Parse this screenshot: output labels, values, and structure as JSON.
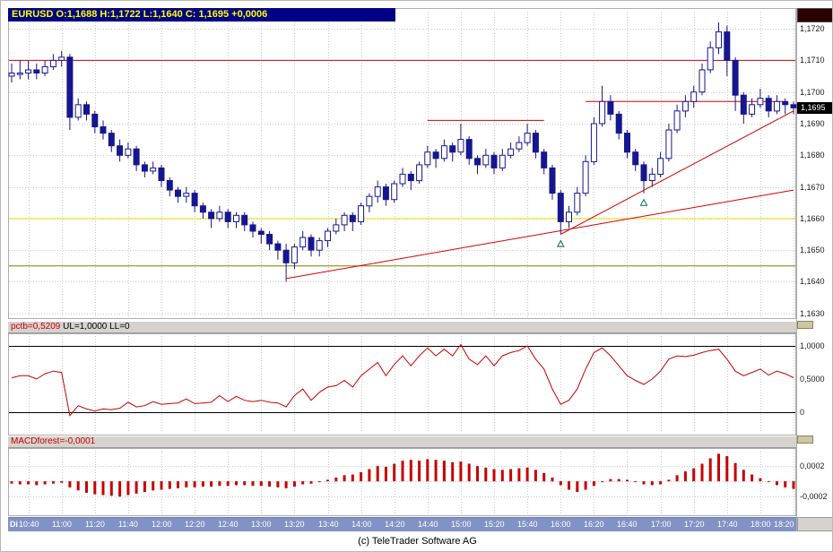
{
  "window": {
    "title": "EURUSD O:1,1688 H:1,1722 L:1,1640 C: 1,1695 +0,0006",
    "footer_credit": "(c) TeleTrader Software AG"
  },
  "colors": {
    "titlebar_bg": "#000084",
    "titlebar_text": "#ffff00",
    "candle": "#16168e",
    "series": "#c80000",
    "trendline": "#d40000",
    "level_red": "#d40000",
    "level_yellow": "#e8e800",
    "level_olive": "#808000",
    "grid": "#c9c9c9",
    "panel_header_bg": "#d6d3ce",
    "badge_bg": "#000000",
    "badge_text": "#ffffff",
    "timebar_bg": "#8292c4",
    "timebar_text": "#ffffff",
    "marker": "#0a6a55",
    "handle": "#cdc7a2",
    "corner_box": "#2b0000"
  },
  "main_panel": {
    "price_axis_labels": [
      {
        "text": "1,1720",
        "value": 1.172
      },
      {
        "text": "1,1710",
        "value": 1.171
      },
      {
        "text": "1,1700",
        "value": 1.17
      },
      {
        "text": "1,1690",
        "value": 1.169
      },
      {
        "text": "1,1680",
        "value": 1.168
      },
      {
        "text": "1,1670",
        "value": 1.167
      },
      {
        "text": "1,1660",
        "value": 1.166
      },
      {
        "text": "1,1650",
        "value": 1.165
      },
      {
        "text": "1,1640",
        "value": 1.164
      },
      {
        "text": "1,1630",
        "value": 1.163
      }
    ],
    "price_badge": {
      "text": "1,1695",
      "value": 1.1695
    }
  },
  "pctb_panel": {
    "title_value": "pctb=0,5209",
    "title_levels": " UL=1,0000 LL=0",
    "axis_labels": [
      {
        "text": "1,0000",
        "value": 1.0
      },
      {
        "text": "0,5000",
        "value": 0.5
      },
      {
        "text": "0",
        "value": 0.0
      }
    ]
  },
  "macd_panel": {
    "title": "MACDforest=-0,0001",
    "axis_labels": [
      {
        "text": "0,0002",
        "value": 0.0002
      },
      {
        "text": "-0,0002",
        "value": -0.0002
      }
    ]
  },
  "time_axis": {
    "day_label": "Di",
    "labels": [
      "10:40",
      "11:00",
      "11:20",
      "11:40",
      "12:00",
      "12:20",
      "12:40",
      "13:00",
      "13:20",
      "13:40",
      "14:00",
      "14:20",
      "14:40",
      "15:00",
      "15:20",
      "15:40",
      "16:00",
      "16:20",
      "16:40",
      "17:00",
      "17:20",
      "17:40",
      "18:00",
      "18:20"
    ]
  },
  "chart_data": [
    {
      "type": "candlestick",
      "symbol": "EURUSD",
      "interval": "5min",
      "start": "10:30",
      "end": "18:20",
      "session_ohlc": {
        "open": 1.1688,
        "high": 1.1722,
        "low": 1.164,
        "close": 1.1695,
        "change": 0.0006
      },
      "visible_axis": [
        1.163,
        1.172
      ],
      "ylim": [
        1.16288,
        1.17254
      ],
      "gridline_step": 0.001,
      "candles": [
        [
          1.1705,
          1.1709,
          1.1703,
          1.1706
        ],
        [
          1.1706,
          1.171,
          1.1704,
          1.1706
        ],
        [
          1.1706,
          1.171,
          1.1704,
          1.1707
        ],
        [
          1.1707,
          1.1709,
          1.1704,
          1.1706
        ],
        [
          1.1706,
          1.171,
          1.1705,
          1.1708
        ],
        [
          1.1708,
          1.1712,
          1.1707,
          1.171
        ],
        [
          1.171,
          1.1713,
          1.1708,
          1.1711
        ],
        [
          1.1711,
          1.1712,
          1.1688,
          1.1692
        ],
        [
          1.1692,
          1.1698,
          1.1691,
          1.1696
        ],
        [
          1.1696,
          1.1697,
          1.1691,
          1.1693
        ],
        [
          1.1693,
          1.1694,
          1.1687,
          1.1689
        ],
        [
          1.1689,
          1.1691,
          1.1685,
          1.1687
        ],
        [
          1.1687,
          1.1688,
          1.1681,
          1.1683
        ],
        [
          1.1683,
          1.1685,
          1.1678,
          1.168
        ],
        [
          1.168,
          1.1684,
          1.1679,
          1.1682
        ],
        [
          1.1682,
          1.1683,
          1.1675,
          1.1677
        ],
        [
          1.1677,
          1.1678,
          1.1673,
          1.1675
        ],
        [
          1.1675,
          1.1678,
          1.1674,
          1.1676
        ],
        [
          1.1676,
          1.1677,
          1.167,
          1.1672
        ],
        [
          1.1672,
          1.1673,
          1.1667,
          1.1669
        ],
        [
          1.1669,
          1.167,
          1.1665,
          1.1667
        ],
        [
          1.1667,
          1.167,
          1.1665,
          1.1668
        ],
        [
          1.1668,
          1.1669,
          1.1662,
          1.1664
        ],
        [
          1.1664,
          1.1665,
          1.166,
          1.1662
        ],
        [
          1.1662,
          1.1663,
          1.1657,
          1.166
        ],
        [
          1.166,
          1.1664,
          1.1659,
          1.1662
        ],
        [
          1.1662,
          1.1663,
          1.1657,
          1.1659
        ],
        [
          1.1659,
          1.1662,
          1.1657,
          1.1661
        ],
        [
          1.1661,
          1.1662,
          1.1656,
          1.1658
        ],
        [
          1.1658,
          1.1659,
          1.1654,
          1.1656
        ],
        [
          1.1656,
          1.1657,
          1.1652,
          1.1655
        ],
        [
          1.1655,
          1.1656,
          1.165,
          1.1652
        ],
        [
          1.1652,
          1.1653,
          1.1647,
          1.165
        ],
        [
          1.165,
          1.1652,
          1.164,
          1.1646
        ],
        [
          1.1646,
          1.1652,
          1.1644,
          1.1651
        ],
        [
          1.1651,
          1.1656,
          1.165,
          1.1654
        ],
        [
          1.1654,
          1.1655,
          1.1648,
          1.165
        ],
        [
          1.165,
          1.1654,
          1.1648,
          1.1653
        ],
        [
          1.1653,
          1.1657,
          1.1651,
          1.1656
        ],
        [
          1.1656,
          1.166,
          1.1655,
          1.1658
        ],
        [
          1.1658,
          1.1662,
          1.1656,
          1.1661
        ],
        [
          1.1661,
          1.1662,
          1.1656,
          1.1659
        ],
        [
          1.1659,
          1.1665,
          1.1658,
          1.1664
        ],
        [
          1.1664,
          1.1668,
          1.1662,
          1.1667
        ],
        [
          1.1667,
          1.1672,
          1.1665,
          1.167
        ],
        [
          1.167,
          1.1671,
          1.1664,
          1.1666
        ],
        [
          1.1666,
          1.1672,
          1.1665,
          1.1671
        ],
        [
          1.1671,
          1.1676,
          1.167,
          1.1674
        ],
        [
          1.1674,
          1.1675,
          1.1669,
          1.1672
        ],
        [
          1.1672,
          1.1678,
          1.1671,
          1.1677
        ],
        [
          1.1677,
          1.1683,
          1.1676,
          1.1681
        ],
        [
          1.1681,
          1.1682,
          1.1676,
          1.1679
        ],
        [
          1.1679,
          1.1685,
          1.1678,
          1.1683
        ],
        [
          1.1683,
          1.1684,
          1.1678,
          1.1681
        ],
        [
          1.1681,
          1.169,
          1.168,
          1.1685
        ],
        [
          1.1685,
          1.1686,
          1.1677,
          1.1679
        ],
        [
          1.1679,
          1.168,
          1.1674,
          1.1677
        ],
        [
          1.1677,
          1.1682,
          1.1676,
          1.168
        ],
        [
          1.168,
          1.1681,
          1.1674,
          1.1676
        ],
        [
          1.1676,
          1.1682,
          1.1675,
          1.168
        ],
        [
          1.168,
          1.1684,
          1.1679,
          1.1682
        ],
        [
          1.1682,
          1.1686,
          1.1681,
          1.1684
        ],
        [
          1.1684,
          1.169,
          1.1683,
          1.1687
        ],
        [
          1.1687,
          1.1688,
          1.1679,
          1.1681
        ],
        [
          1.1681,
          1.1682,
          1.1674,
          1.1676
        ],
        [
          1.1676,
          1.1677,
          1.1666,
          1.1668
        ],
        [
          1.1668,
          1.1669,
          1.1655,
          1.1659
        ],
        [
          1.1659,
          1.1664,
          1.1657,
          1.1662
        ],
        [
          1.1662,
          1.167,
          1.1661,
          1.1668
        ],
        [
          1.1668,
          1.168,
          1.1667,
          1.1678
        ],
        [
          1.1678,
          1.1692,
          1.1677,
          1.169
        ],
        [
          1.169,
          1.1702,
          1.1689,
          1.1697
        ],
        [
          1.1697,
          1.1699,
          1.1691,
          1.1693
        ],
        [
          1.1693,
          1.1694,
          1.1685,
          1.1687
        ],
        [
          1.1687,
          1.1688,
          1.1679,
          1.1681
        ],
        [
          1.1681,
          1.1682,
          1.1675,
          1.1677
        ],
        [
          1.1677,
          1.1678,
          1.1668,
          1.1672
        ],
        [
          1.1672,
          1.1676,
          1.167,
          1.1674
        ],
        [
          1.1674,
          1.1681,
          1.1673,
          1.1679
        ],
        [
          1.1679,
          1.169,
          1.1678,
          1.1688
        ],
        [
          1.1688,
          1.1696,
          1.1687,
          1.1694
        ],
        [
          1.1694,
          1.1699,
          1.1692,
          1.1697
        ],
        [
          1.1697,
          1.1702,
          1.1695,
          1.17
        ],
        [
          1.17,
          1.1709,
          1.1699,
          1.1707
        ],
        [
          1.1707,
          1.1716,
          1.1706,
          1.1714
        ],
        [
          1.1714,
          1.1722,
          1.1712,
          1.1719
        ],
        [
          1.1719,
          1.1721,
          1.1705,
          1.171
        ],
        [
          1.171,
          1.1711,
          1.1694,
          1.1699
        ],
        [
          1.1699,
          1.17,
          1.169,
          1.1693
        ],
        [
          1.1693,
          1.1698,
          1.1692,
          1.1696
        ],
        [
          1.1696,
          1.1701,
          1.1695,
          1.1698
        ],
        [
          1.1698,
          1.1699,
          1.1692,
          1.1694
        ],
        [
          1.1694,
          1.1699,
          1.1693,
          1.1697
        ],
        [
          1.1697,
          1.1698,
          1.1693,
          1.1696
        ],
        [
          1.1696,
          1.1697,
          1.1693,
          1.1695
        ]
      ],
      "overlays": {
        "horizontal_lines": [
          {
            "price": 1.171,
            "color": "#d40000",
            "from_index": null,
            "to_index": null
          },
          {
            "price": 1.1697,
            "color": "#d40000",
            "from_index": 69,
            "to_index": 93
          },
          {
            "price": 1.1691,
            "color": "#d40000",
            "from_index": 50,
            "to_index": 64
          },
          {
            "price": 1.166,
            "color": "#e8e800",
            "from_index": null,
            "to_index": null
          },
          {
            "price": 1.1645,
            "color": "#808000",
            "from_index": null,
            "to_index": null
          }
        ],
        "trendlines": [
          {
            "from_index": 33,
            "from_price": 1.1641,
            "to_index": 94,
            "to_price": 1.1669
          },
          {
            "from_index": 66,
            "from_price": 1.1655,
            "to_index": 94,
            "to_price": 1.1694
          }
        ],
        "markers": [
          {
            "index": 66,
            "price": 1.1652,
            "shape": "triangle-up"
          },
          {
            "index": 76,
            "price": 1.1665,
            "shape": "triangle-up"
          }
        ]
      }
    },
    {
      "type": "line",
      "name": "pctb",
      "current": 0.5209,
      "upper_level": 1.0,
      "lower_level": 0.0,
      "ylim": [
        -0.31,
        1.149
      ],
      "values": [
        0.52,
        0.55,
        0.55,
        0.5,
        0.58,
        0.62,
        0.6,
        -0.05,
        0.1,
        0.05,
        0.02,
        0.05,
        0.04,
        0.06,
        0.15,
        0.08,
        0.1,
        0.16,
        0.12,
        0.13,
        0.14,
        0.2,
        0.13,
        0.14,
        0.15,
        0.25,
        0.16,
        0.24,
        0.18,
        0.16,
        0.18,
        0.15,
        0.14,
        0.08,
        0.25,
        0.35,
        0.18,
        0.3,
        0.38,
        0.4,
        0.48,
        0.38,
        0.55,
        0.65,
        0.75,
        0.55,
        0.72,
        0.85,
        0.7,
        0.85,
        0.97,
        0.85,
        0.95,
        0.85,
        1.02,
        0.8,
        0.72,
        0.85,
        0.7,
        0.85,
        0.9,
        0.93,
        1.0,
        0.8,
        0.65,
        0.35,
        0.12,
        0.18,
        0.35,
        0.65,
        0.9,
        0.97,
        0.85,
        0.7,
        0.55,
        0.48,
        0.42,
        0.5,
        0.62,
        0.8,
        0.85,
        0.84,
        0.86,
        0.9,
        0.93,
        0.95,
        0.8,
        0.62,
        0.55,
        0.6,
        0.65,
        0.56,
        0.62,
        0.58,
        0.5209
      ]
    },
    {
      "type": "bar",
      "name": "MACDforest",
      "current": -0.0001,
      "unit": 1e-05,
      "ylim": [
        -0.00042,
        0.0004
      ],
      "gridlines": [
        0.0002,
        0,
        -0.0002
      ],
      "values": [
        -3,
        -4,
        -4,
        -5,
        -4,
        -3,
        -2,
        -8,
        -12,
        -15,
        -17,
        -18,
        -19,
        -20,
        -18,
        -16,
        -14,
        -12,
        -11,
        -10,
        -9,
        -8,
        -8,
        -7,
        -7,
        -6,
        -6,
        -5,
        -5,
        -6,
        -6,
        -7,
        -8,
        -9,
        -7,
        -4,
        -3,
        -1,
        2,
        5,
        8,
        9,
        12,
        16,
        20,
        19,
        23,
        27,
        28,
        27,
        29,
        28,
        27,
        25,
        26,
        23,
        20,
        18,
        16,
        15,
        16,
        17,
        18,
        15,
        11,
        5,
        -5,
        -11,
        -14,
        -11,
        -6,
        0,
        3,
        3,
        2,
        -1,
        -4,
        -5,
        -4,
        2,
        8,
        13,
        17,
        23,
        30,
        36,
        33,
        24,
        15,
        9,
        4,
        0,
        -5,
        -8,
        -10
      ]
    }
  ]
}
